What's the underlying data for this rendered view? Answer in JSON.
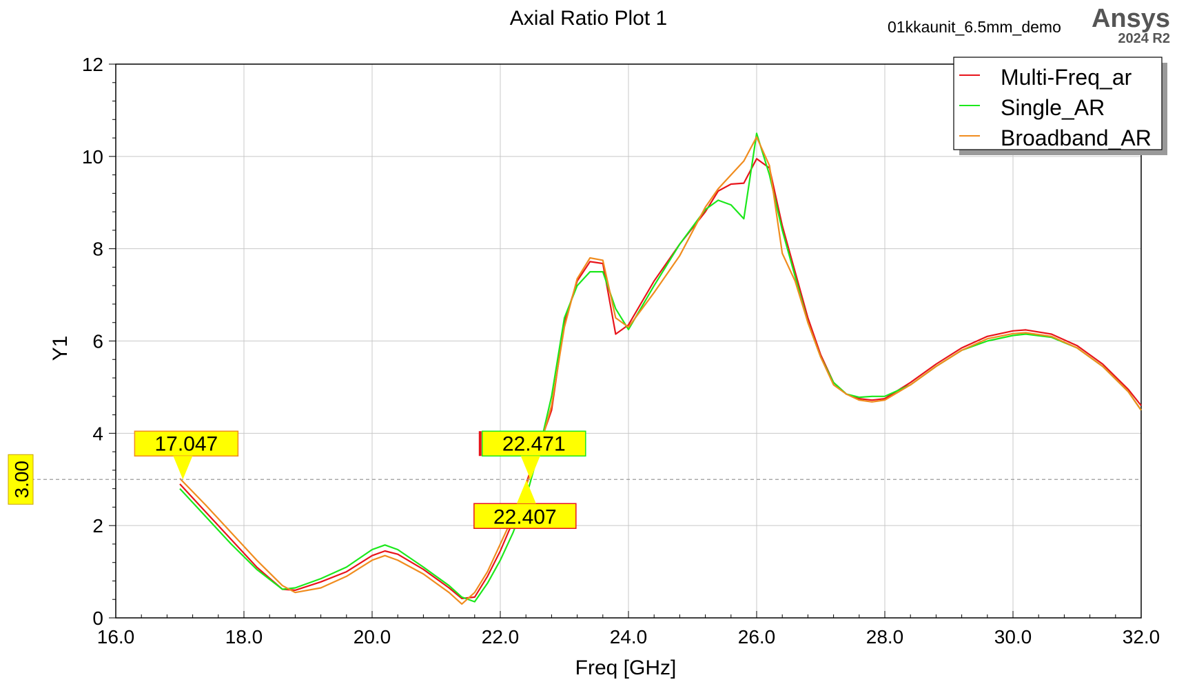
{
  "header": {
    "title": "Axial Ratio Plot 1",
    "project": "01kkaunit_6.5mm_demo",
    "brand": "Ansys",
    "version": "2024 R2"
  },
  "colors": {
    "multi": "#e8141b",
    "single": "#1be81b",
    "broadband": "#f08c1e",
    "marker_fill": "#ffff00",
    "grid": "#c8c8c8",
    "ref_line": "#9a9a9a"
  },
  "chart_data": {
    "type": "line",
    "title": "Axial Ratio Plot 1",
    "xlabel": "Freq [GHz]",
    "ylabel": "Y1",
    "xlim": [
      16,
      32
    ],
    "ylim": [
      0,
      12
    ],
    "xticks": [
      16,
      18,
      20,
      22,
      24,
      26,
      28,
      30,
      32
    ],
    "xtick_labels": [
      "16.0",
      "18.0",
      "20.0",
      "22.0",
      "24.0",
      "26.0",
      "28.0",
      "30.0",
      "32.0"
    ],
    "yticks": [
      0,
      2,
      4,
      6,
      8,
      10,
      12
    ],
    "ytick_labels": [
      "0",
      "2",
      "4",
      "6",
      "8",
      "10",
      "12"
    ],
    "grid": true,
    "legend_position": "top-right",
    "reference_line": {
      "y": 3.0,
      "label": "3.00"
    },
    "markers": [
      {
        "label": "17.047",
        "x": 17.047,
        "y": 3.0,
        "color": "orange",
        "side": "above"
      },
      {
        "label": "22.471",
        "x": 22.471,
        "y": 3.0,
        "color": "green",
        "side": "above"
      },
      {
        "label": "22.407",
        "x": 22.407,
        "y": 3.0,
        "color": "red",
        "side": "below"
      }
    ],
    "series": [
      {
        "name": "Multi-Freq_ar",
        "color": "#e8141b",
        "points": [
          [
            17.0,
            2.9
          ],
          [
            17.4,
            2.3
          ],
          [
            17.8,
            1.7
          ],
          [
            18.2,
            1.1
          ],
          [
            18.6,
            0.62
          ],
          [
            18.8,
            0.6
          ],
          [
            19.2,
            0.78
          ],
          [
            19.6,
            1.0
          ],
          [
            20.0,
            1.35
          ],
          [
            20.2,
            1.45
          ],
          [
            20.4,
            1.38
          ],
          [
            20.8,
            1.05
          ],
          [
            21.2,
            0.65
          ],
          [
            21.4,
            0.42
          ],
          [
            21.6,
            0.45
          ],
          [
            21.8,
            0.9
          ],
          [
            22.0,
            1.45
          ],
          [
            22.2,
            2.1
          ],
          [
            22.4,
            2.9
          ],
          [
            22.6,
            3.7
          ],
          [
            22.8,
            4.5
          ],
          [
            23.0,
            6.4
          ],
          [
            23.2,
            7.3
          ],
          [
            23.4,
            7.72
          ],
          [
            23.6,
            7.68
          ],
          [
            23.8,
            6.15
          ],
          [
            24.0,
            6.35
          ],
          [
            24.4,
            7.3
          ],
          [
            24.8,
            8.1
          ],
          [
            25.2,
            8.8
          ],
          [
            25.4,
            9.25
          ],
          [
            25.6,
            9.4
          ],
          [
            25.8,
            9.42
          ],
          [
            26.0,
            9.95
          ],
          [
            26.2,
            9.75
          ],
          [
            26.4,
            8.5
          ],
          [
            26.6,
            7.5
          ],
          [
            26.8,
            6.5
          ],
          [
            27.0,
            5.7
          ],
          [
            27.2,
            5.1
          ],
          [
            27.4,
            4.85
          ],
          [
            27.6,
            4.75
          ],
          [
            27.8,
            4.72
          ],
          [
            28.0,
            4.75
          ],
          [
            28.4,
            5.1
          ],
          [
            28.8,
            5.5
          ],
          [
            29.2,
            5.85
          ],
          [
            29.6,
            6.1
          ],
          [
            30.0,
            6.22
          ],
          [
            30.2,
            6.24
          ],
          [
            30.6,
            6.15
          ],
          [
            31.0,
            5.9
          ],
          [
            31.4,
            5.5
          ],
          [
            31.8,
            4.95
          ],
          [
            32.0,
            4.6
          ]
        ]
      },
      {
        "name": "Single_AR",
        "color": "#1be81b",
        "points": [
          [
            17.0,
            2.8
          ],
          [
            17.4,
            2.2
          ],
          [
            17.8,
            1.6
          ],
          [
            18.2,
            1.05
          ],
          [
            18.6,
            0.62
          ],
          [
            18.8,
            0.65
          ],
          [
            19.2,
            0.85
          ],
          [
            19.6,
            1.1
          ],
          [
            20.0,
            1.48
          ],
          [
            20.2,
            1.58
          ],
          [
            20.4,
            1.48
          ],
          [
            20.8,
            1.1
          ],
          [
            21.2,
            0.7
          ],
          [
            21.4,
            0.45
          ],
          [
            21.6,
            0.35
          ],
          [
            21.8,
            0.75
          ],
          [
            22.0,
            1.25
          ],
          [
            22.2,
            1.85
          ],
          [
            22.4,
            2.6
          ],
          [
            22.6,
            3.6
          ],
          [
            22.8,
            4.8
          ],
          [
            23.0,
            6.5
          ],
          [
            23.2,
            7.2
          ],
          [
            23.4,
            7.5
          ],
          [
            23.6,
            7.5
          ],
          [
            23.8,
            6.7
          ],
          [
            24.0,
            6.25
          ],
          [
            24.4,
            7.2
          ],
          [
            24.8,
            8.1
          ],
          [
            25.2,
            8.85
          ],
          [
            25.4,
            9.05
          ],
          [
            25.6,
            8.95
          ],
          [
            25.8,
            8.65
          ],
          [
            26.0,
            10.5
          ],
          [
            26.2,
            9.6
          ],
          [
            26.4,
            8.4
          ],
          [
            26.6,
            7.4
          ],
          [
            26.8,
            6.4
          ],
          [
            27.0,
            5.65
          ],
          [
            27.2,
            5.1
          ],
          [
            27.4,
            4.85
          ],
          [
            27.6,
            4.78
          ],
          [
            27.8,
            4.8
          ],
          [
            28.0,
            4.8
          ],
          [
            28.4,
            5.05
          ],
          [
            28.8,
            5.45
          ],
          [
            29.2,
            5.8
          ],
          [
            29.6,
            6.0
          ],
          [
            30.0,
            6.12
          ],
          [
            30.2,
            6.15
          ],
          [
            30.6,
            6.08
          ],
          [
            31.0,
            5.85
          ],
          [
            31.4,
            5.45
          ],
          [
            31.8,
            4.9
          ],
          [
            32.0,
            4.5
          ]
        ]
      },
      {
        "name": "Broadband_AR",
        "color": "#f08c1e",
        "points": [
          [
            17.0,
            3.02
          ],
          [
            17.4,
            2.45
          ],
          [
            17.8,
            1.85
          ],
          [
            18.2,
            1.25
          ],
          [
            18.6,
            0.7
          ],
          [
            18.8,
            0.55
          ],
          [
            19.2,
            0.65
          ],
          [
            19.6,
            0.9
          ],
          [
            20.0,
            1.25
          ],
          [
            20.2,
            1.35
          ],
          [
            20.4,
            1.25
          ],
          [
            20.8,
            0.95
          ],
          [
            21.2,
            0.55
          ],
          [
            21.4,
            0.3
          ],
          [
            21.6,
            0.55
          ],
          [
            21.8,
            1.0
          ],
          [
            22.0,
            1.6
          ],
          [
            22.2,
            2.2
          ],
          [
            22.4,
            2.85
          ],
          [
            22.6,
            3.6
          ],
          [
            22.8,
            4.6
          ],
          [
            23.0,
            6.3
          ],
          [
            23.2,
            7.35
          ],
          [
            23.4,
            7.8
          ],
          [
            23.6,
            7.75
          ],
          [
            23.8,
            6.5
          ],
          [
            24.0,
            6.3
          ],
          [
            24.4,
            7.05
          ],
          [
            24.8,
            7.85
          ],
          [
            25.2,
            8.9
          ],
          [
            25.4,
            9.3
          ],
          [
            25.6,
            9.6
          ],
          [
            25.8,
            9.9
          ],
          [
            26.0,
            10.42
          ],
          [
            26.2,
            9.8
          ],
          [
            26.4,
            7.9
          ],
          [
            26.6,
            7.3
          ],
          [
            26.8,
            6.4
          ],
          [
            27.0,
            5.65
          ],
          [
            27.2,
            5.05
          ],
          [
            27.4,
            4.85
          ],
          [
            27.6,
            4.72
          ],
          [
            27.8,
            4.68
          ],
          [
            28.0,
            4.72
          ],
          [
            28.4,
            5.05
          ],
          [
            28.8,
            5.45
          ],
          [
            29.2,
            5.8
          ],
          [
            29.6,
            6.05
          ],
          [
            30.0,
            6.16
          ],
          [
            30.2,
            6.18
          ],
          [
            30.6,
            6.1
          ],
          [
            31.0,
            5.85
          ],
          [
            31.4,
            5.45
          ],
          [
            31.8,
            4.9
          ],
          [
            32.0,
            4.5
          ]
        ]
      }
    ]
  }
}
